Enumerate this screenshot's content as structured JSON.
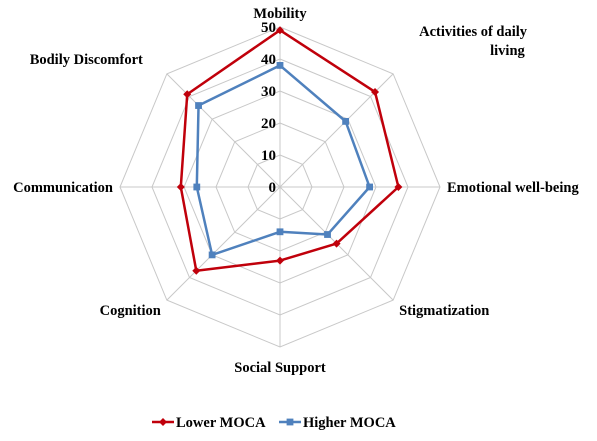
{
  "chart_data": {
    "type": "radar",
    "categories": [
      [
        "Mobility"
      ],
      [
        "Activities of daily",
        "living"
      ],
      [
        "Emotional well-being"
      ],
      [
        "Stigmatization"
      ],
      [
        "Social Support"
      ],
      [
        "Cognition"
      ],
      [
        "Communication"
      ],
      [
        "Bodily Discomfort"
      ]
    ],
    "series": [
      {
        "name": "Lower MOCA",
        "values": [
          49,
          42,
          37,
          25,
          23,
          37,
          31,
          41
        ],
        "color": "#c0000b",
        "marker": "diamond"
      },
      {
        "name": "Higher MOCA",
        "values": [
          38,
          29,
          28,
          21,
          14,
          30,
          26,
          36
        ],
        "color": "#4f81bd",
        "marker": "square"
      }
    ],
    "r_ticks": [
      "0",
      "10",
      "20",
      "30",
      "40",
      "50"
    ],
    "r_range": [
      0,
      50
    ],
    "grid": true,
    "legend_position": "bottom"
  }
}
